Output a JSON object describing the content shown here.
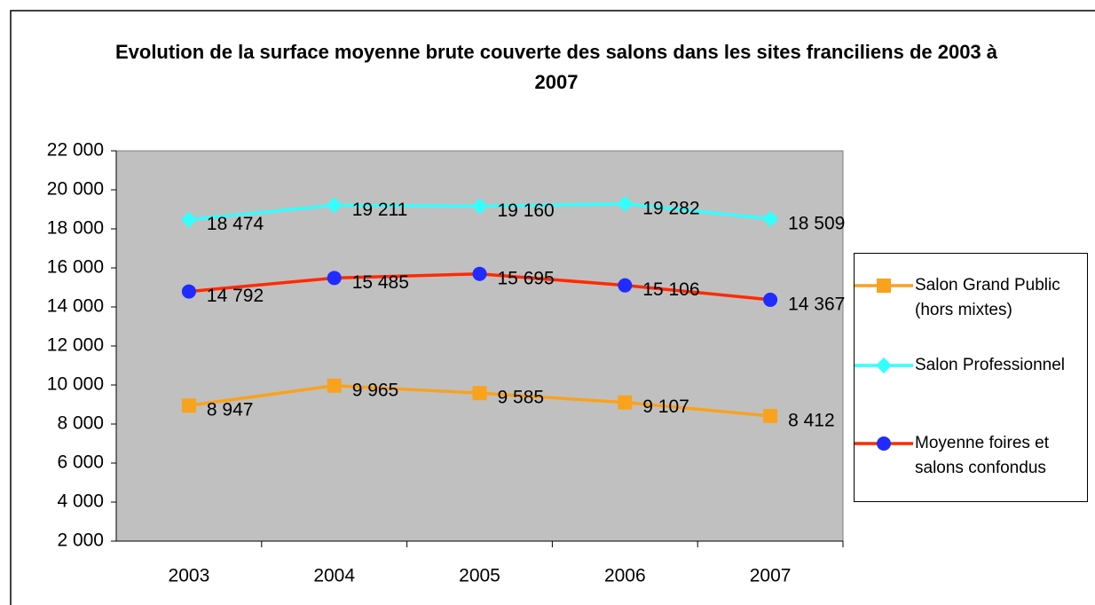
{
  "chart_data": {
    "type": "line",
    "title": "Evolution de la surface moyenne brute couverte des salons dans les sites franciliens de 2003 à 2007",
    "categories": [
      "2003",
      "2004",
      "2005",
      "2006",
      "2007"
    ],
    "series": [
      {
        "name": "Salon Grand Public (hors mixtes)",
        "color": "#f9a21e",
        "marker": "square",
        "marker_color": "#f9a21e",
        "values": [
          8947,
          9965,
          9585,
          9107,
          8412
        ],
        "value_labels": [
          "8 947",
          "9 965",
          "9 585",
          "9 107",
          "8 412"
        ]
      },
      {
        "name": "Salon Professionnel",
        "color": "#33ffff",
        "marker": "diamond",
        "marker_color": "#33ffff",
        "values": [
          18474,
          19211,
          19160,
          19282,
          18509
        ],
        "value_labels": [
          "18 474",
          "19 211",
          "19 160",
          "19 282",
          "18 509"
        ]
      },
      {
        "name": "Moyenne foires et salons confondus",
        "color": "#ff2a00",
        "marker": "circle",
        "marker_color": "#1f2bff",
        "values": [
          14792,
          15485,
          15695,
          15106,
          14367
        ],
        "value_labels": [
          "14 792",
          "15 485",
          "15 695",
          "15 106",
          "14 367"
        ]
      }
    ],
    "ylim": [
      2000,
      22000
    ],
    "yticks": [
      {
        "value": 2000,
        "label": "2 000"
      },
      {
        "value": 4000,
        "label": "4 000"
      },
      {
        "value": 6000,
        "label": "6 000"
      },
      {
        "value": 8000,
        "label": "8 000"
      },
      {
        "value": 10000,
        "label": "10 000"
      },
      {
        "value": 12000,
        "label": "12 000"
      },
      {
        "value": 14000,
        "label": "14 000"
      },
      {
        "value": 16000,
        "label": "16 000"
      },
      {
        "value": 18000,
        "label": "18 000"
      },
      {
        "value": 20000,
        "label": "20 000"
      },
      {
        "value": 22000,
        "label": "22 000"
      }
    ],
    "grid": false,
    "legend": "right"
  }
}
